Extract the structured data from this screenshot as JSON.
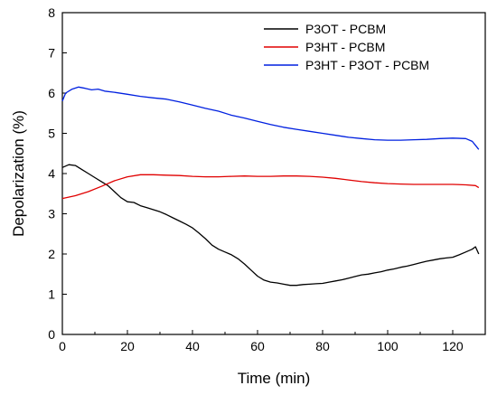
{
  "chart_data": {
    "type": "line",
    "title": "",
    "xlabel": "Time  (min)",
    "ylabel": "Depolarization (%)",
    "xlim": [
      0,
      130
    ],
    "ylim": [
      0,
      8
    ],
    "xticks": [
      "0",
      "20",
      "40",
      "60",
      "80",
      "100",
      "120"
    ],
    "yticks": [
      "0",
      "1",
      "2",
      "3",
      "4",
      "5",
      "6",
      "7",
      "8"
    ],
    "grid": false,
    "legend_position": "top-right",
    "series": [
      {
        "name": "P3OT - PCBM",
        "color": "#000000",
        "x": [
          0,
          2,
          4,
          6,
          8,
          10,
          12,
          14,
          16,
          18,
          20,
          22,
          24,
          26,
          28,
          30,
          32,
          34,
          36,
          38,
          40,
          42,
          44,
          46,
          48,
          50,
          52,
          54,
          56,
          58,
          60,
          62,
          64,
          66,
          68,
          70,
          72,
          74,
          76,
          78,
          80,
          82,
          84,
          86,
          88,
          90,
          92,
          94,
          96,
          98,
          100,
          102,
          104,
          106,
          108,
          110,
          112,
          114,
          116,
          118,
          120,
          122,
          124,
          126,
          127,
          128
        ],
        "y": [
          4.15,
          4.22,
          4.2,
          4.1,
          4.0,
          3.9,
          3.8,
          3.7,
          3.55,
          3.4,
          3.3,
          3.28,
          3.2,
          3.15,
          3.1,
          3.05,
          2.98,
          2.9,
          2.82,
          2.74,
          2.65,
          2.52,
          2.38,
          2.22,
          2.12,
          2.05,
          1.98,
          1.88,
          1.75,
          1.6,
          1.45,
          1.35,
          1.3,
          1.28,
          1.25,
          1.22,
          1.22,
          1.24,
          1.25,
          1.26,
          1.27,
          1.3,
          1.33,
          1.36,
          1.4,
          1.44,
          1.48,
          1.5,
          1.53,
          1.56,
          1.6,
          1.63,
          1.67,
          1.7,
          1.74,
          1.78,
          1.82,
          1.85,
          1.88,
          1.9,
          1.92,
          1.98,
          2.05,
          2.12,
          2.18,
          2.0
        ]
      },
      {
        "name": "P3HT - PCBM",
        "color": "#e00000",
        "x": [
          0,
          4,
          8,
          12,
          16,
          20,
          24,
          28,
          32,
          36,
          40,
          44,
          48,
          52,
          56,
          60,
          64,
          68,
          72,
          76,
          80,
          84,
          88,
          92,
          96,
          100,
          104,
          108,
          112,
          116,
          120,
          124,
          127,
          128
        ],
        "y": [
          3.38,
          3.45,
          3.55,
          3.68,
          3.82,
          3.92,
          3.97,
          3.97,
          3.96,
          3.95,
          3.93,
          3.92,
          3.92,
          3.93,
          3.94,
          3.93,
          3.93,
          3.94,
          3.94,
          3.93,
          3.91,
          3.88,
          3.84,
          3.8,
          3.77,
          3.75,
          3.74,
          3.73,
          3.73,
          3.73,
          3.73,
          3.72,
          3.7,
          3.65
        ]
      },
      {
        "name": "P3HT - P3OT - PCBM",
        "color": "#0020e0",
        "x": [
          0,
          1,
          3,
          5,
          7,
          9,
          11,
          13,
          16,
          20,
          24,
          28,
          32,
          36,
          40,
          44,
          48,
          52,
          56,
          60,
          64,
          68,
          72,
          76,
          80,
          84,
          88,
          92,
          96,
          100,
          104,
          108,
          112,
          116,
          120,
          124,
          126,
          127,
          128
        ],
        "y": [
          5.8,
          6.0,
          6.1,
          6.15,
          6.12,
          6.08,
          6.1,
          6.05,
          6.02,
          5.97,
          5.92,
          5.88,
          5.85,
          5.78,
          5.7,
          5.62,
          5.55,
          5.45,
          5.38,
          5.3,
          5.22,
          5.15,
          5.1,
          5.05,
          5.0,
          4.95,
          4.9,
          4.87,
          4.84,
          4.83,
          4.83,
          4.84,
          4.85,
          4.87,
          4.88,
          4.87,
          4.8,
          4.7,
          4.6
        ]
      }
    ]
  }
}
